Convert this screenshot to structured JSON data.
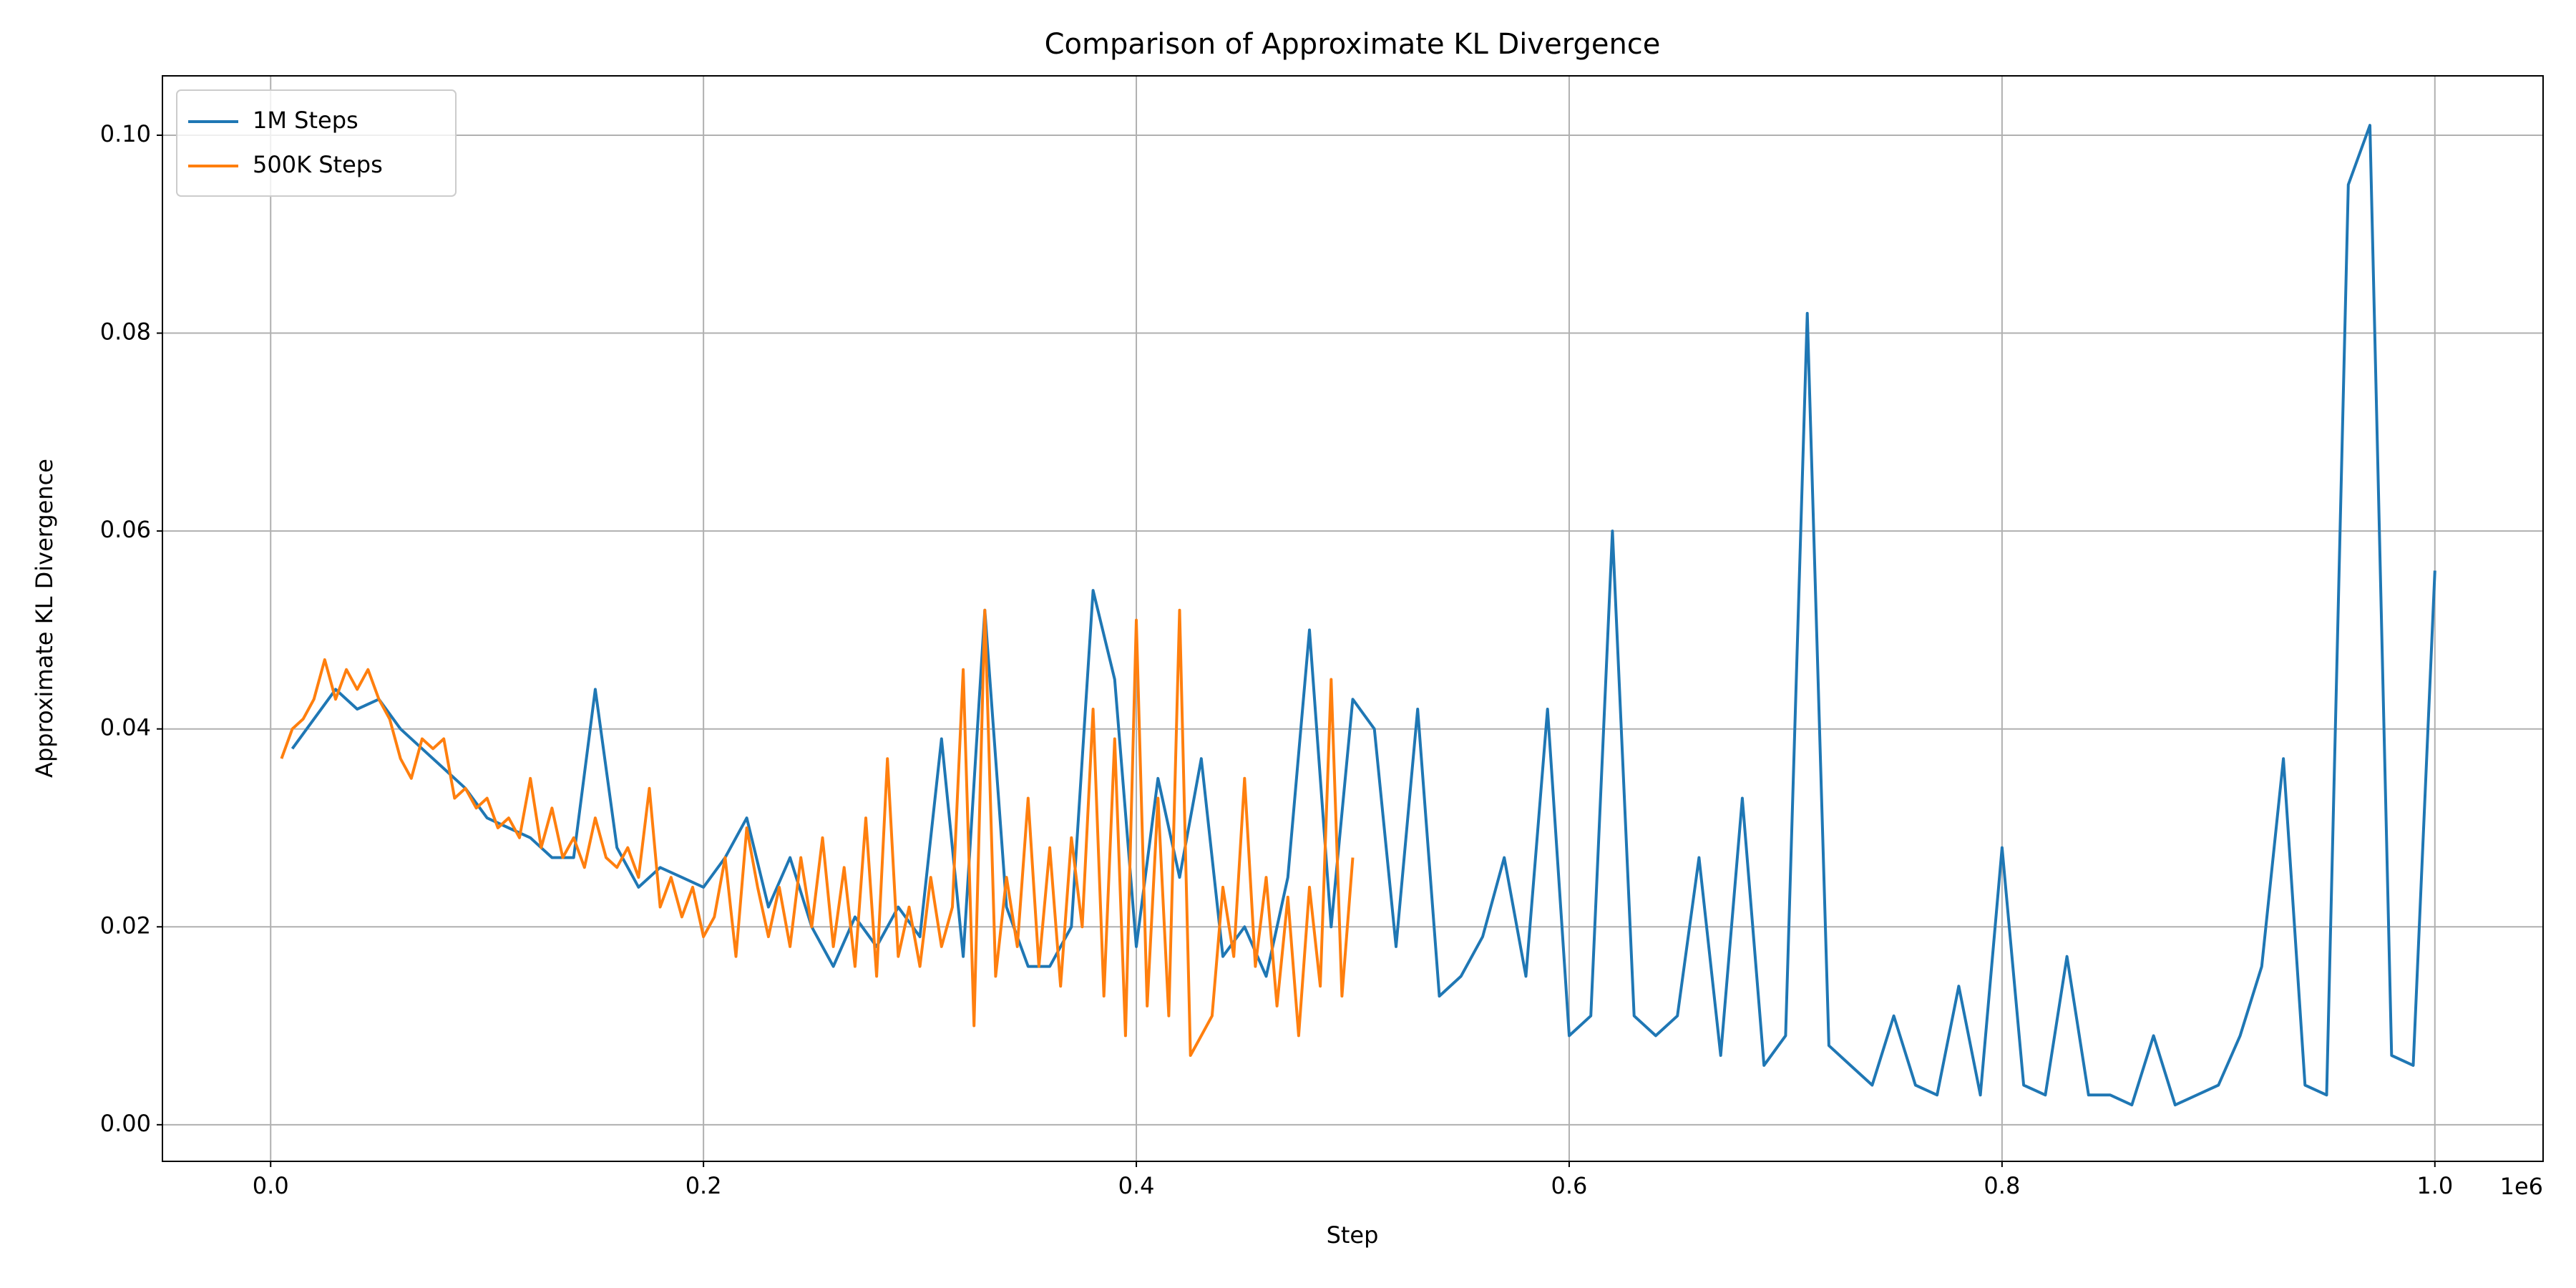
{
  "chart_data": {
    "type": "line",
    "title": "Comparison of Approximate KL Divergence",
    "x_label": "Step",
    "y_label": "Approximate KL Divergence",
    "x_offset_label": "1e6",
    "xlim": [
      -50000,
      1050000
    ],
    "ylim": [
      -0.0037,
      0.106
    ],
    "xticks": [
      {
        "value": 0,
        "label": "0.0"
      },
      {
        "value": 200000,
        "label": "0.2"
      },
      {
        "value": 400000,
        "label": "0.4"
      },
      {
        "value": 600000,
        "label": "0.6"
      },
      {
        "value": 800000,
        "label": "0.8"
      },
      {
        "value": 1000000,
        "label": "1.0"
      }
    ],
    "yticks": [
      {
        "value": 0,
        "label": "0.00"
      },
      {
        "value": 0.02,
        "label": "0.02"
      },
      {
        "value": 0.04,
        "label": "0.04"
      },
      {
        "value": 0.06,
        "label": "0.06"
      },
      {
        "value": 0.08,
        "label": "0.08"
      },
      {
        "value": 0.1,
        "label": "0.10"
      }
    ],
    "grid": true,
    "legend": "upper left",
    "series": [
      {
        "name": "1M Steps",
        "color": "#1f77b4",
        "x": [
          10000,
          20000,
          30000,
          40000,
          50000,
          60000,
          70000,
          80000,
          90000,
          100000,
          110000,
          120000,
          130000,
          140000,
          150000,
          160000,
          170000,
          180000,
          190000,
          200000,
          210000,
          220000,
          230000,
          240000,
          250000,
          260000,
          270000,
          280000,
          290000,
          300000,
          310000,
          320000,
          330000,
          340000,
          350000,
          360000,
          370000,
          380000,
          390000,
          400000,
          410000,
          420000,
          430000,
          440000,
          450000,
          460000,
          470000,
          480000,
          490000,
          500000,
          510000,
          520000,
          530000,
          540000,
          550000,
          560000,
          570000,
          580000,
          590000,
          600000,
          610000,
          620000,
          630000,
          640000,
          650000,
          660000,
          670000,
          680000,
          690000,
          700000,
          710000,
          720000,
          730000,
          740000,
          750000,
          760000,
          770000,
          780000,
          790000,
          800000,
          810000,
          820000,
          830000,
          840000,
          850000,
          860000,
          870000,
          880000,
          890000,
          900000,
          910000,
          920000,
          930000,
          940000,
          950000,
          960000,
          970000,
          980000,
          990000,
          1000000
        ],
        "values": [
          0.038,
          0.041,
          0.044,
          0.042,
          0.043,
          0.04,
          0.038,
          0.036,
          0.034,
          0.031,
          0.03,
          0.029,
          0.027,
          0.027,
          0.044,
          0.028,
          0.024,
          0.026,
          0.025,
          0.024,
          0.027,
          0.031,
          0.022,
          0.027,
          0.02,
          0.016,
          0.021,
          0.018,
          0.022,
          0.019,
          0.039,
          0.017,
          0.052,
          0.022,
          0.016,
          0.016,
          0.02,
          0.054,
          0.045,
          0.018,
          0.035,
          0.025,
          0.037,
          0.017,
          0.02,
          0.015,
          0.025,
          0.05,
          0.02,
          0.043,
          0.04,
          0.018,
          0.042,
          0.013,
          0.015,
          0.019,
          0.027,
          0.015,
          0.042,
          0.009,
          0.011,
          0.06,
          0.011,
          0.009,
          0.011,
          0.027,
          0.007,
          0.033,
          0.006,
          0.009,
          0.082,
          0.008,
          0.006,
          0.004,
          0.011,
          0.004,
          0.003,
          0.014,
          0.003,
          0.028,
          0.004,
          0.003,
          0.017,
          0.003,
          0.003,
          0.002,
          0.009,
          0.002,
          0.003,
          0.004,
          0.009,
          0.016,
          0.037,
          0.004,
          0.003,
          0.095,
          0.101,
          0.007,
          0.006,
          0.056
        ]
      },
      {
        "name": "500K Steps",
        "color": "#ff7f0e",
        "x": [
          5000,
          10000,
          15000,
          20000,
          25000,
          30000,
          35000,
          40000,
          45000,
          50000,
          55000,
          60000,
          65000,
          70000,
          75000,
          80000,
          85000,
          90000,
          95000,
          100000,
          105000,
          110000,
          115000,
          120000,
          125000,
          130000,
          135000,
          140000,
          145000,
          150000,
          155000,
          160000,
          165000,
          170000,
          175000,
          180000,
          185000,
          190000,
          195000,
          200000,
          205000,
          210000,
          215000,
          220000,
          225000,
          230000,
          235000,
          240000,
          245000,
          250000,
          255000,
          260000,
          265000,
          270000,
          275000,
          280000,
          285000,
          290000,
          295000,
          300000,
          305000,
          310000,
          315000,
          320000,
          325000,
          330000,
          335000,
          340000,
          345000,
          350000,
          355000,
          360000,
          365000,
          370000,
          375000,
          380000,
          385000,
          390000,
          395000,
          400000,
          405000,
          410000,
          415000,
          420000,
          425000,
          430000,
          435000,
          440000,
          445000,
          450000,
          455000,
          460000,
          465000,
          470000,
          475000,
          480000,
          485000,
          490000,
          495000,
          500000
        ],
        "values": [
          0.037,
          0.04,
          0.041,
          0.043,
          0.047,
          0.043,
          0.046,
          0.044,
          0.046,
          0.043,
          0.041,
          0.037,
          0.035,
          0.039,
          0.038,
          0.039,
          0.033,
          0.034,
          0.032,
          0.033,
          0.03,
          0.031,
          0.029,
          0.035,
          0.028,
          0.032,
          0.027,
          0.029,
          0.026,
          0.031,
          0.027,
          0.026,
          0.028,
          0.025,
          0.034,
          0.022,
          0.025,
          0.021,
          0.024,
          0.019,
          0.021,
          0.027,
          0.017,
          0.03,
          0.024,
          0.019,
          0.024,
          0.018,
          0.027,
          0.02,
          0.029,
          0.018,
          0.026,
          0.016,
          0.031,
          0.015,
          0.037,
          0.017,
          0.022,
          0.016,
          0.025,
          0.018,
          0.022,
          0.046,
          0.01,
          0.052,
          0.015,
          0.025,
          0.018,
          0.033,
          0.016,
          0.028,
          0.014,
          0.029,
          0.02,
          0.042,
          0.013,
          0.039,
          0.009,
          0.051,
          0.012,
          0.033,
          0.011,
          0.052,
          0.007,
          0.009,
          0.011,
          0.024,
          0.017,
          0.035,
          0.016,
          0.025,
          0.012,
          0.023,
          0.009,
          0.024,
          0.014,
          0.045,
          0.013,
          0.027
        ]
      }
    ]
  }
}
